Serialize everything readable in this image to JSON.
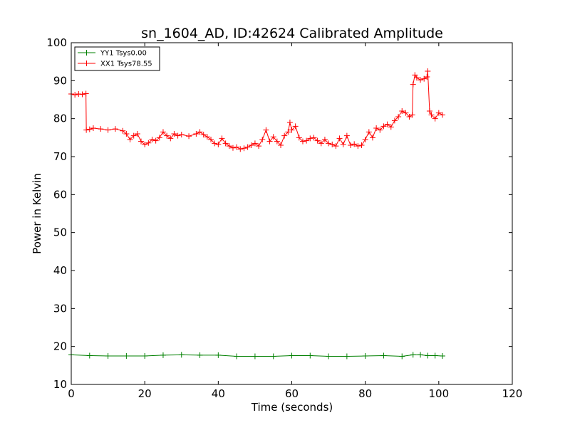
{
  "chart_data": {
    "type": "line",
    "title": "sn_1604_AD, ID:42624 Calibrated Amplitude",
    "xlabel": "Time (seconds)",
    "ylabel": "Power in Kelvin",
    "xlim": [
      0,
      120
    ],
    "ylim": [
      10,
      100
    ],
    "xticks": [
      0,
      20,
      40,
      60,
      80,
      100,
      120
    ],
    "yticks": [
      10,
      20,
      30,
      40,
      50,
      60,
      70,
      80,
      90,
      100
    ],
    "grid": false,
    "legend_position": "top-left",
    "marker": "+",
    "series": [
      {
        "name": "YY1 Tsys0.00",
        "color": "#008000",
        "x": [
          0,
          5,
          10,
          15,
          20,
          25,
          30,
          35,
          40,
          45,
          50,
          55,
          60,
          65,
          70,
          75,
          80,
          85,
          90,
          93,
          95,
          97,
          99,
          101
        ],
        "y": [
          17.8,
          17.6,
          17.5,
          17.5,
          17.5,
          17.7,
          17.8,
          17.7,
          17.7,
          17.4,
          17.4,
          17.4,
          17.6,
          17.6,
          17.4,
          17.4,
          17.5,
          17.6,
          17.4,
          17.8,
          17.8,
          17.6,
          17.6,
          17.5
        ]
      },
      {
        "name": "XX1 Tsys78.55",
        "color": "#ff0000",
        "x": [
          0,
          1,
          2,
          3,
          4,
          4.1,
          5,
          6,
          8,
          10,
          12,
          14,
          15,
          16,
          17,
          18,
          19,
          20,
          21,
          22,
          23,
          24,
          25,
          26,
          27,
          28,
          29,
          30,
          32,
          34,
          35,
          36,
          37,
          38,
          39,
          40,
          41,
          42,
          43,
          44,
          45,
          46,
          47,
          48,
          49,
          50,
          51,
          52,
          53,
          54,
          55,
          56,
          57,
          58,
          59,
          59.5,
          60,
          61,
          62,
          63,
          64,
          65,
          66,
          67,
          68,
          69,
          70,
          71,
          72,
          73,
          74,
          75,
          76,
          77,
          78,
          79,
          80,
          81,
          82,
          83,
          84,
          85,
          86,
          87,
          88,
          89,
          90,
          91,
          92,
          92.8,
          93,
          93.5,
          94,
          95,
          96,
          96.8,
          97,
          97.5,
          98,
          99,
          100,
          101
        ],
        "y": [
          86.5,
          86.3,
          86.5,
          86.4,
          86.6,
          77.0,
          77.2,
          77.5,
          77.3,
          77.0,
          77.3,
          76.8,
          76.0,
          74.5,
          75.5,
          76.0,
          74.0,
          73.2,
          73.6,
          74.5,
          74.2,
          75.0,
          76.5,
          75.5,
          74.8,
          76.0,
          75.5,
          75.8,
          75.4,
          76.0,
          76.5,
          75.8,
          75.2,
          74.5,
          73.5,
          73.2,
          74.8,
          73.5,
          72.8,
          72.3,
          72.5,
          72.0,
          72.2,
          72.5,
          73.0,
          73.5,
          72.8,
          74.5,
          77.0,
          74.0,
          75.2,
          74.0,
          73.0,
          75.5,
          76.5,
          79.0,
          77.0,
          78.0,
          75.0,
          74.0,
          74.2,
          74.8,
          75.0,
          74.2,
          73.5,
          74.5,
          73.5,
          73.2,
          72.8,
          74.8,
          73.2,
          75.5,
          73.0,
          73.3,
          72.8,
          73.0,
          74.5,
          76.5,
          75.0,
          77.5,
          77.0,
          78.0,
          78.5,
          77.8,
          79.5,
          80.5,
          82.0,
          81.5,
          80.5,
          81.0,
          89.0,
          91.5,
          90.8,
          90.2,
          90.5,
          91.0,
          92.5,
          82.0,
          81.0,
          80.0,
          81.5,
          81.0
        ]
      }
    ]
  }
}
